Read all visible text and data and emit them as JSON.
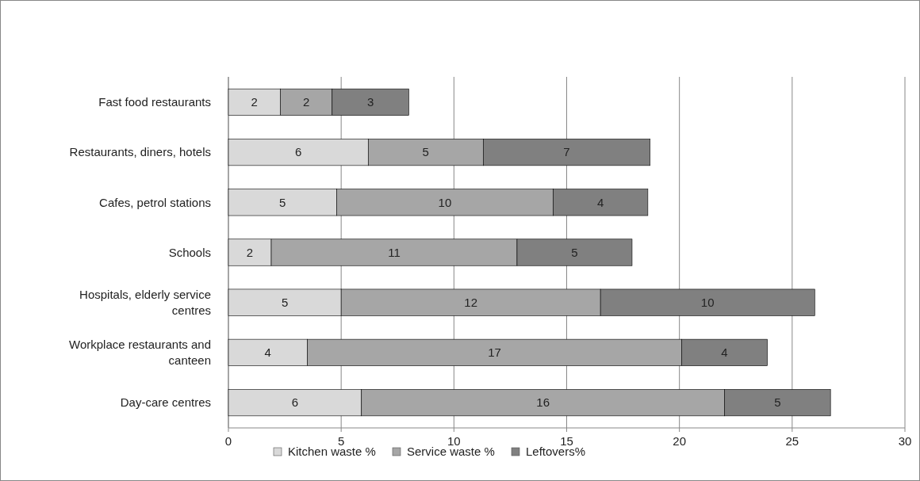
{
  "chart_data": {
    "type": "bar",
    "orientation": "horizontal",
    "stacked": true,
    "categories": [
      "Fast food restaurants",
      "Restaurants, diners, hotels",
      "Cafes, petrol stations",
      "Schools",
      "Hospitals, elderly service centres",
      "Workplace restaurants and canteen",
      "Day-care centres"
    ],
    "series": [
      {
        "name": "Kitchen waste %",
        "color": "#d9d9d9",
        "values": [
          2.3,
          6.2,
          4.8,
          1.9,
          5.0,
          3.5,
          5.9
        ],
        "value_labels": [
          "2",
          "6",
          "5",
          "2",
          "5",
          "4",
          "6"
        ]
      },
      {
        "name": "Service waste %",
        "color": "#a6a6a6",
        "values": [
          2.3,
          5.1,
          9.6,
          10.9,
          11.5,
          16.6,
          16.1
        ],
        "value_labels": [
          "2",
          "5",
          "10",
          "11",
          "12",
          "17",
          "16"
        ]
      },
      {
        "name": "Leftovers%",
        "color": "#808080",
        "values": [
          3.4,
          7.4,
          4.2,
          5.1,
          9.5,
          3.8,
          4.7
        ],
        "value_labels": [
          "3",
          "7",
          "4",
          "5",
          "10",
          "4",
          "5"
        ]
      }
    ],
    "xlim": [
      0,
      30
    ],
    "xticks": [
      0,
      5,
      10,
      15,
      20,
      25,
      30
    ],
    "grid": "x",
    "legend": "bottom"
  }
}
